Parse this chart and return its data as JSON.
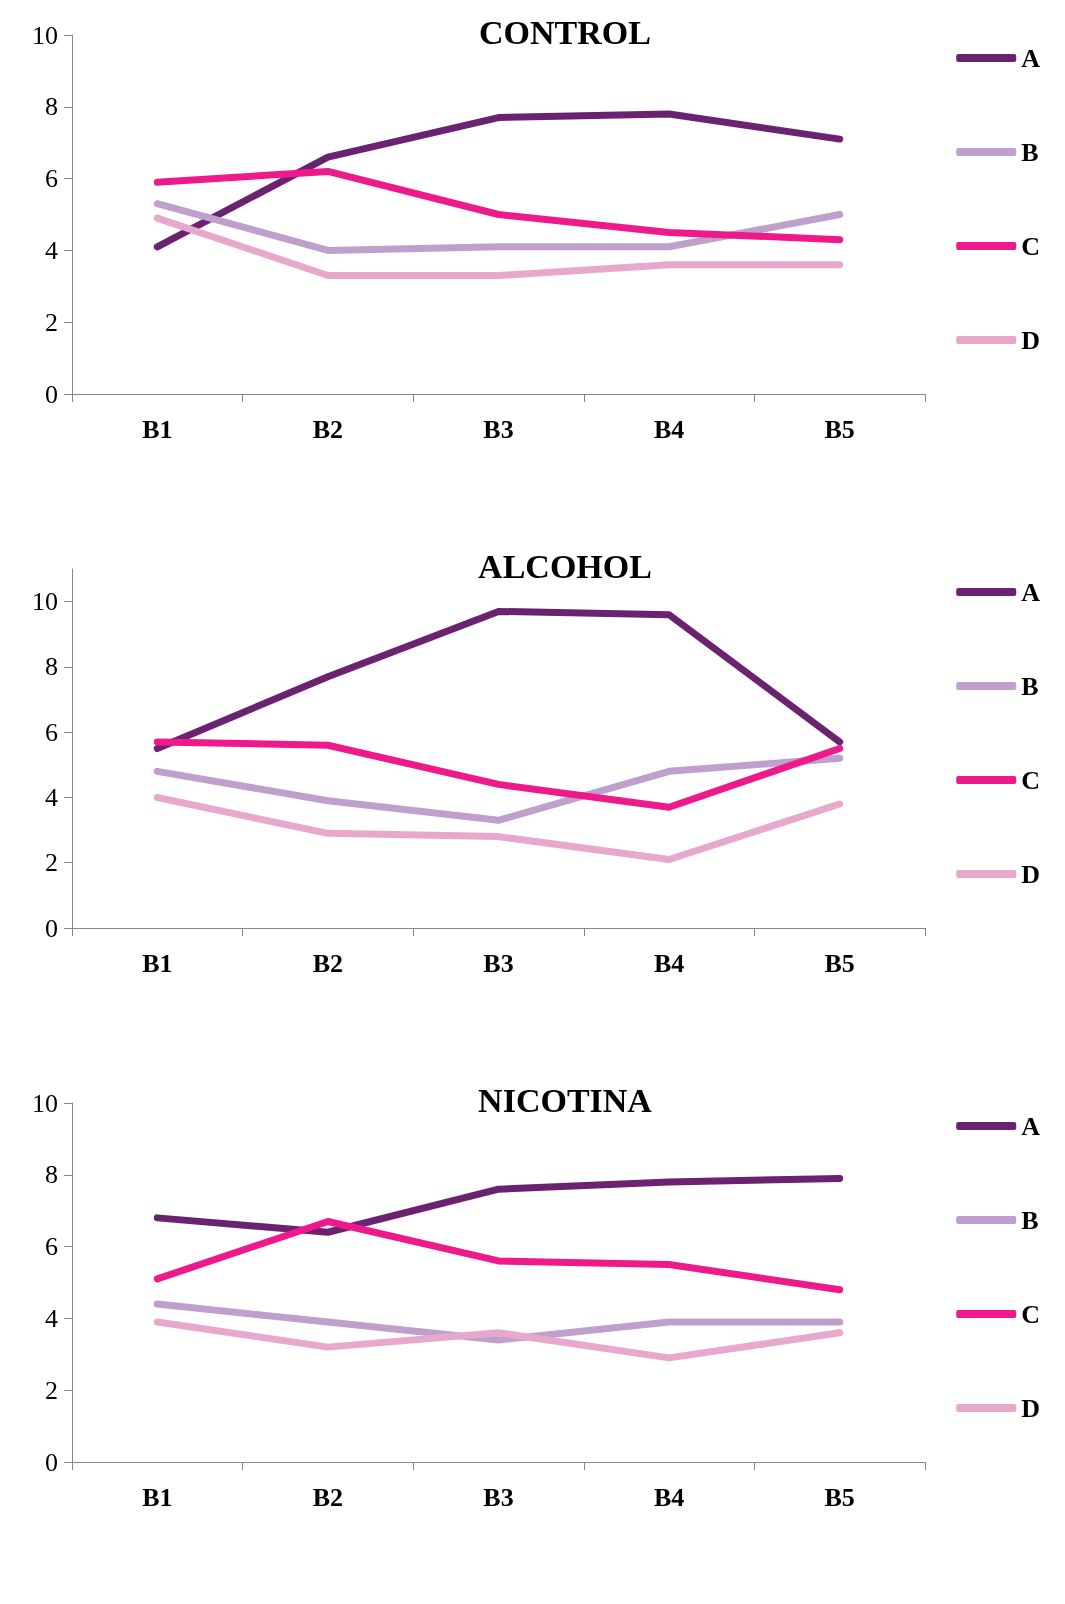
{
  "chart_data": [
    {
      "type": "line",
      "title": "CONTROL",
      "categories": [
        "B1",
        "B2",
        "B3",
        "B4",
        "B5"
      ],
      "ylim": [
        0,
        10
      ],
      "yticks": [
        0,
        2,
        4,
        6,
        8,
        10
      ],
      "grid": false,
      "legend": "right",
      "marker": "none",
      "line_style": "solid",
      "series": [
        {
          "name": "A",
          "color": "#6b2270",
          "values": [
            4.1,
            6.6,
            7.7,
            7.8,
            7.1
          ]
        },
        {
          "name": "B",
          "color": "#bfa0cc",
          "values": [
            5.3,
            4.0,
            4.1,
            4.1,
            5.0
          ]
        },
        {
          "name": "C",
          "color": "#ee1a8c",
          "values": [
            5.9,
            6.2,
            5.0,
            4.5,
            4.3
          ]
        },
        {
          "name": "D",
          "color": "#e8a8cc",
          "values": [
            4.9,
            3.3,
            3.3,
            3.6,
            3.6
          ]
        }
      ]
    },
    {
      "type": "line",
      "title": "ALCOHOL",
      "categories": [
        "B1",
        "B2",
        "B3",
        "B4",
        "B5"
      ],
      "ylim": [
        0,
        11
      ],
      "yticks": [
        0,
        2,
        4,
        6,
        8,
        10
      ],
      "grid": false,
      "legend": "right",
      "marker": "none",
      "line_style": "solid",
      "series": [
        {
          "name": "A",
          "color": "#6b2270",
          "values": [
            5.5,
            7.7,
            9.7,
            9.6,
            5.7
          ]
        },
        {
          "name": "B",
          "color": "#bfa0cc",
          "values": [
            4.8,
            3.9,
            3.3,
            4.8,
            5.2
          ]
        },
        {
          "name": "C",
          "color": "#ee1a8c",
          "values": [
            5.7,
            5.6,
            4.4,
            3.7,
            5.5
          ]
        },
        {
          "name": "D",
          "color": "#e8a8cc",
          "values": [
            4.0,
            2.9,
            2.8,
            2.1,
            3.8
          ]
        }
      ]
    },
    {
      "type": "line",
      "title": "NICOTINA",
      "categories": [
        "B1",
        "B2",
        "B3",
        "B4",
        "B5"
      ],
      "ylim": [
        0,
        10
      ],
      "yticks": [
        0,
        2,
        4,
        6,
        8,
        10
      ],
      "grid": false,
      "legend": "right",
      "marker": "none",
      "line_style": "solid",
      "series": [
        {
          "name": "A",
          "color": "#6b2270",
          "values": [
            6.8,
            6.4,
            7.6,
            7.8,
            7.9
          ]
        },
        {
          "name": "B",
          "color": "#bfa0cc",
          "values": [
            4.4,
            3.9,
            3.4,
            3.9,
            3.9
          ]
        },
        {
          "name": "C",
          "color": "#ee1a8c",
          "values": [
            5.1,
            6.7,
            5.6,
            5.5,
            4.8
          ]
        },
        {
          "name": "D",
          "color": "#e8a8cc",
          "values": [
            3.9,
            3.2,
            3.6,
            2.9,
            3.6
          ]
        }
      ]
    }
  ]
}
